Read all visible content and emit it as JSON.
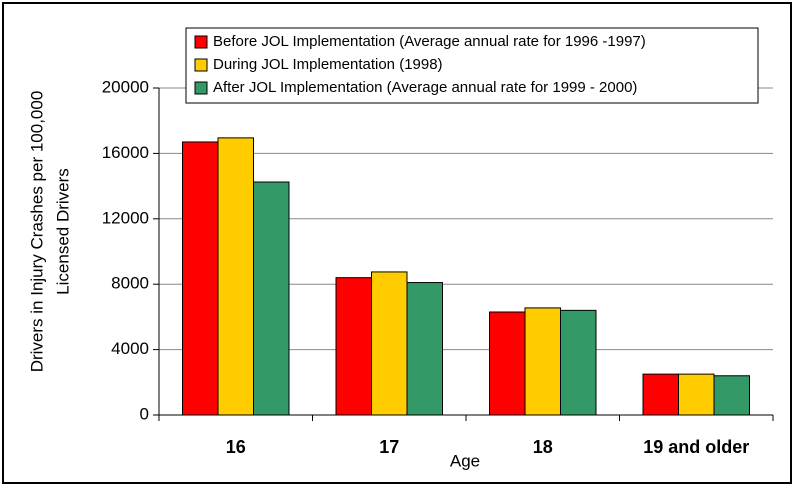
{
  "chart_data": {
    "type": "bar",
    "xlabel": "Age",
    "ylabel": [
      "Drivers in Injury Crashes per 100,000",
      "Licensed Drivers"
    ],
    "categories": [
      "16",
      "17",
      "18",
      "19 and older"
    ],
    "series": [
      {
        "name": "Before JOL Implementation (Average annual rate for 1996 -1997)",
        "color": "#ff0000",
        "values": [
          16700,
          8400,
          6300,
          2500
        ]
      },
      {
        "name": "During JOL Implementation (1998)",
        "color": "#ffcc00",
        "values": [
          16950,
          8750,
          6550,
          2500
        ]
      },
      {
        "name": "After JOL Implementation (Average annual rate for 1999 - 2000)",
        "color": "#339966",
        "values": [
          14250,
          8100,
          6400,
          2400
        ]
      }
    ],
    "ylim": [
      0,
      20000
    ],
    "yticks": [
      0,
      4000,
      8000,
      12000,
      16000,
      20000
    ],
    "grid": true
  }
}
